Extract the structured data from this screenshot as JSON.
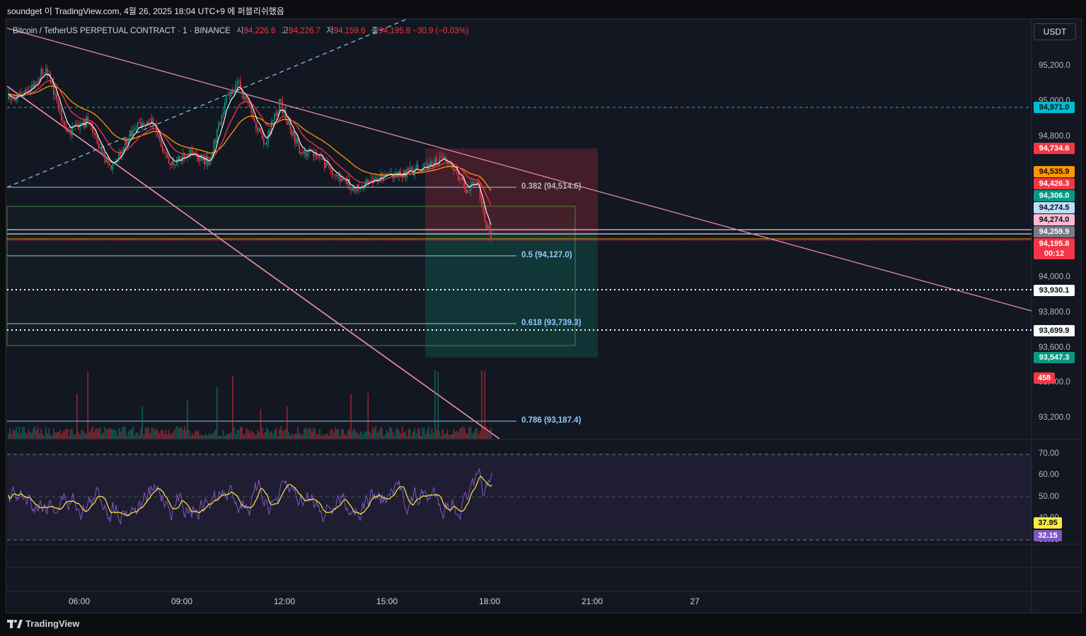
{
  "header": {
    "text": "soundget 이 TradingView.com, 4월 26, 2025 18:04 UTC+9 에 퍼블리쉬했음"
  },
  "symbol": {
    "name": "Bitcoin / TetherUS PERPETUAL CONTRACT · 1 · BINANCE",
    "open_label": "시",
    "open": "94,226.6",
    "high_label": "고",
    "high": "94,226.7",
    "low_label": "저",
    "low": "94,159.6",
    "close_label": "종",
    "close": "94,195.8",
    "change": "−30.9 (−0.03%)"
  },
  "currency_button": "USDT",
  "price_scale": [
    "95,200.0",
    "95,000.0",
    "94,800.0",
    "94,000.0",
    "93,800.0",
    "93,600.0",
    "93,400.0",
    "93,200.0"
  ],
  "price_tags": [
    {
      "label": "94,971.0",
      "bg": "#00bcd4",
      "fg": "#0c0d10"
    },
    {
      "label": "94,734.6",
      "bg": "#f23645",
      "fg": "#ffffff"
    },
    {
      "label": "94,535.9",
      "bg": "#ff9800",
      "fg": "#0c0d10"
    },
    {
      "label": "94,426.3",
      "bg": "#f23645",
      "fg": "#ffffff"
    },
    {
      "label": "94,306.0",
      "bg": "#089981",
      "fg": "#ffffff"
    },
    {
      "label": "94,274.5",
      "bg": "#bbdefb",
      "fg": "#0c0d10"
    },
    {
      "label": "94,274.0",
      "bg": "#f8bbd0",
      "fg": "#0c0d10"
    },
    {
      "label": "94,259.9",
      "bg": "#787b86",
      "fg": "#ffffff"
    },
    {
      "label": "94,195.8",
      "bg": "#f23645",
      "fg": "#ffffff"
    },
    {
      "label": "00:12",
      "bg": "#f23645",
      "fg": "#ffffff"
    },
    {
      "label": "93,930.1",
      "bg": "#ffffff",
      "fg": "#0c0d10"
    },
    {
      "label": "93,699.9",
      "bg": "#ffffff",
      "fg": "#0c0d10"
    },
    {
      "label": "93,547.3",
      "bg": "#089981",
      "fg": "#ffffff"
    },
    {
      "label": "458",
      "bg": "#f23645",
      "fg": "#ffffff"
    }
  ],
  "fib_levels": [
    {
      "label": "0.382 (94,514.6)",
      "color": "#b2b5be"
    },
    {
      "label": "0.5 (94,127.0)",
      "color": "#90caf9"
    },
    {
      "label": "0.618 (93,739.3)",
      "color": "#90caf9"
    },
    {
      "label": "0.786 (93,187.4)",
      "color": "#90caf9"
    }
  ],
  "rsi_scale": [
    "70.00",
    "60.00",
    "50.00",
    "40.00",
    "30.00"
  ],
  "rsi_tags": [
    {
      "label": "37.95",
      "bg": "#ffeb3b",
      "fg": "#0c0d10"
    },
    {
      "label": "32.15",
      "bg": "#7e57c2",
      "fg": "#ffffff"
    }
  ],
  "time_labels": [
    "06:00",
    "09:00",
    "12:00",
    "15:00",
    "18:00",
    "21:00",
    "27"
  ],
  "brand": "TradingView",
  "colors": {
    "background": "#131722",
    "up": "#089981",
    "down": "#f23645",
    "ema_fast": "#ffffff",
    "ema_mid": "#f23645",
    "ema_slow": "#ff9800",
    "rsi": "#7e57c2",
    "rsi_ma": "#ffeb3b",
    "trendline": "#f48fb1"
  }
}
